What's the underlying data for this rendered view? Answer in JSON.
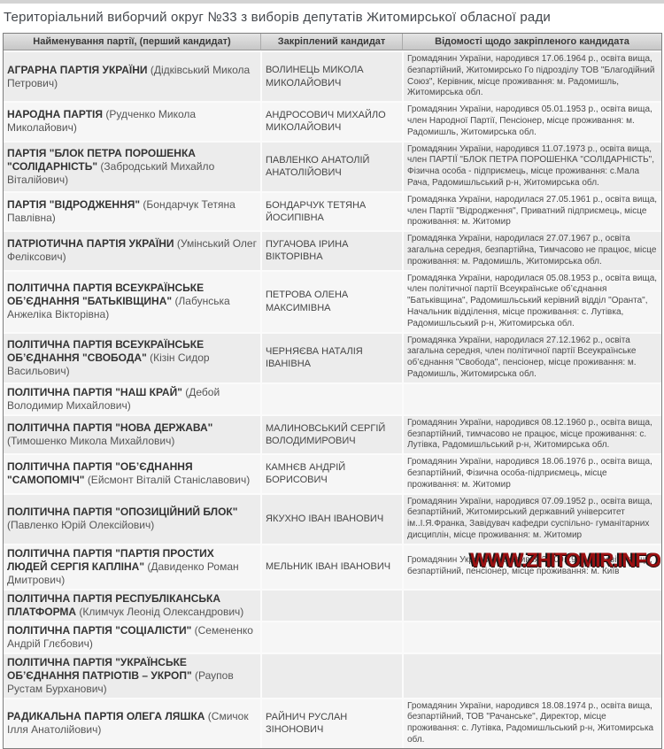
{
  "page": {
    "title": "Територіальний виборчий округ №33 з виборів депутатів Житомирської обласної ради"
  },
  "table": {
    "headers": [
      "Найменування партії, (перший кандидат)",
      "Закріплений кандидат",
      "Відомості щодо закріпленого кандидата"
    ],
    "rows": [
      {
        "party": "АГРАРНА ПАРТІЯ УКРАЇНИ",
        "first_candidate": "(Дідківський Микола Петрович)",
        "candidate": "ВОЛИНЕЦЬ МИКОЛА МИКОЛАЙОВИЧ",
        "info": "Громадянин України, народився 17.06.1964 р., освіта вища, безпартійний, Житомирсько Го підрозділу ТОВ \"Благодійний Союз\", Керівник, місце проживання: м. Радомишль, Житомирська обл."
      },
      {
        "party": "НАРОДНА ПАРТІЯ",
        "first_candidate": "(Рудченко Микола Миколайович)",
        "candidate": "АНДРОСОВИЧ МИХАЙЛО МИКОЛАЙОВИЧ",
        "info": "Громадянин України, народився 05.01.1953 р., освіта вища, член Народної Партії, Пенсіонер, місце проживання: м. Радомишль, Житомирська обл."
      },
      {
        "party": "ПАРТІЯ \"БЛОК ПЕТРА ПОРОШЕНКА \"СОЛІДАРНІСТЬ\"",
        "first_candidate": "(Забродський Михайло Віталійович)",
        "candidate": "ПАВЛЕНКО АНАТОЛІЙ АНАТОЛІЙОВИЧ",
        "info": "Громадянин України, народився 11.07.1973 р., освіта вища, член ПАРТІЇ \"БЛОК ПЕТРА ПОРОШЕНКА \"СОЛІДАРНІСТЬ\", Фізична особа - підприємець, місце проживання: с.Мала Рача, Радомишльський р-н, Житомирська обл."
      },
      {
        "party": "ПАРТІЯ \"ВІДРОДЖЕННЯ\"",
        "first_candidate": "(Бондарчук Тетяна Павлівна)",
        "candidate": "БОНДАРЧУК ТЕТЯНА ЙОСИПІВНА",
        "info": "Громадянка України, народилася 27.05.1961 р., освіта вища, член Партії \"Відродження\", Приватний підприємець, місце проживання: м. Житомир"
      },
      {
        "party": "ПАТРІОТИЧНА ПАРТІЯ УКРАЇНИ",
        "first_candidate": "(Умінський Олег Феліксович)",
        "candidate": "ПУГАЧОВА ІРИНА ВІКТОРІВНА",
        "info": "Громадянка України, народилася 27.07.1967 р., освіта загальна середня, безпартійна, Тимчасово не працює, місце проживання: м. Радомишль, Житомирська обл."
      },
      {
        "party": "ПОЛІТИЧНА ПАРТІЯ ВСЕУКРАЇНСЬКЕ ОБ’ЄДНАННЯ \"БАТЬКІВЩИНА\"",
        "first_candidate": "(Лабунська Анжеліка Вікторівна)",
        "candidate": "ПЕТРОВА ОЛЕНА МАКСИМІВНА",
        "info": "Громадянка України, народилася 05.08.1953 р., освіта вища, член політичної партії Всеукраїнське об’єднання \"Батьківщина\", Радомишльський керівний відділ \"Оранта\", Начальник відділення, місце проживання: с. Лутівка, Радомишльський р-н, Житомирська обл."
      },
      {
        "party": "ПОЛІТИЧНА ПАРТІЯ ВСЕУКРАЇНСЬКЕ ОБ’ЄДНАННЯ \"СВОБОДА\"",
        "first_candidate": "(Кізін Сидор Васильович)",
        "candidate": "ЧЕРНЯЄВА НАТАЛІЯ ІВАНІВНА",
        "info": "Громадянка України, народилася 27.12.1962 р., освіта загальна середня, член політичної партії Всеукраїнське об’єднання \"Свобода\", пенсіонер, місце проживання: м. Радомишль, Житомирська обл."
      },
      {
        "party": "ПОЛІТИЧНА ПАРТІЯ \"НАШ КРАЙ\"",
        "first_candidate": "(Дебой Володимир Михайлович)",
        "candidate": "",
        "info": ""
      },
      {
        "party": "ПОЛІТИЧНА ПАРТІЯ \"НОВА ДЕРЖАВА\"",
        "first_candidate": "(Тимошенко Микола Михайлович)",
        "candidate": "МАЛИНОВСЬКИЙ СЕРГІЙ ВОЛОДИМИРОВИЧ",
        "info": "Громадянин України, народився 08.12.1960 р., освіта вища, безпартійний, тимчасово не працює, місце проживання: с. Лутівка, Радомишльський р-н, Житомирська обл."
      },
      {
        "party": "ПОЛІТИЧНА ПАРТІЯ \"ОБ’ЄДНАННЯ \"САМОПОМІЧ\"",
        "first_candidate": "(Ейсмонт Віталій Станіславович)",
        "candidate": "КАМНЄВ АНДРІЙ БОРИСОВИЧ",
        "info": "Громадянин України, народився 18.06.1976 р., освіта вища, безпартійний, Фізична особа-підприємець, місце проживання: м. Житомир"
      },
      {
        "party": "ПОЛІТИЧНА ПАРТІЯ \"ОПОЗИЦІЙНИЙ БЛОК\"",
        "first_candidate": "(Павленко Юрій Олексійович)",
        "candidate": "ЯКУХНО ІВАН ІВАНОВИЧ",
        "info": "Громадянин України, народився 07.09.1952 р., освіта вища, безпартійний, Житомирський державний університет ім..І.Я.Франка, Завідувач кафедри суспільно- гуманітарних дисциплін, місце проживання: м. Житомир"
      },
      {
        "party": "ПОЛІТИЧНА ПАРТІЯ \"ПАРТІЯ ПРОСТИХ ЛЮДЕЙ СЕРГІЯ КАПЛІНА\"",
        "first_candidate": "(Давиденко Роман Дмитрович)",
        "candidate": "МЕЛЬНИК ІВАН ІВАНОВИЧ",
        "info": "Громадянин України, народився 28.09.1966 р., освіта вища, безпартійний, пенсіонер, місце проживання: м. Київ"
      },
      {
        "party": "ПОЛІТИЧНА ПАРТІЯ РЕСПУБЛІКАНСЬКА ПЛАТФОРМА",
        "first_candidate": "(Климчук Леонід Олександрович)",
        "candidate": "",
        "info": ""
      },
      {
        "party": "ПОЛІТИЧНА ПАРТІЯ \"СОЦІАЛІСТИ\"",
        "first_candidate": "(Семененко Андрій Глєбович)",
        "candidate": "",
        "info": ""
      },
      {
        "party": "ПОЛІТИЧНА ПАРТІЯ \"УКРАЇНСЬКЕ ОБ’ЄДНАННЯ ПАТРІОТІВ – УКРОП\"",
        "first_candidate": "(Раупов Рустам Бурханович)",
        "candidate": "",
        "info": ""
      },
      {
        "party": "РАДИКАЛЬНА ПАРТІЯ ОЛЕГА ЛЯШКА",
        "first_candidate": "(Смичок Ілля Анатолійович)",
        "candidate": "РАЙНИЧ РУСЛАН ЗІНОНОВИЧ",
        "info": "Громадянин України, народився 18.08.1974 р., освіта вища, безпартійний, ТОВ \"Рачанське\", Директор, місце проживання: с. Лутівка, Радомишльський р-н, Житомирська обл."
      }
    ]
  },
  "watermark": {
    "text": "WWW.ZHITOMIR.INFO"
  },
  "colors": {
    "title_text": "#43474c",
    "header_bg_top": "#e4e4e4",
    "header_bg_bottom": "#c7c7c7",
    "row_odd_bg": "#ececec",
    "row_even_bg": "#f6f6f6",
    "table_border": "#7e7e7e",
    "watermark_red": "#9b1012"
  }
}
